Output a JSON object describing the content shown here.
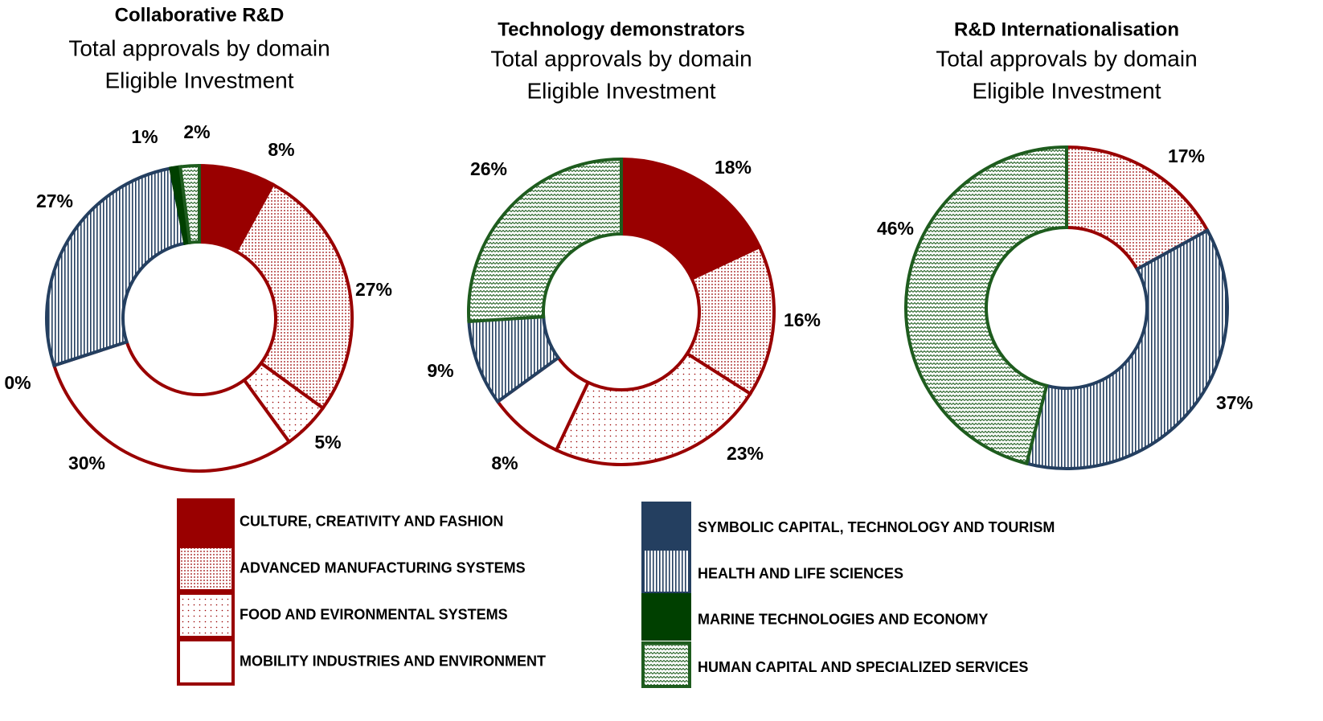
{
  "chart_data": [
    {
      "type": "pie",
      "title": "Collaborative R&D",
      "subtitle": [
        "Total approvals by domain",
        "Eligible Investment"
      ],
      "categories": [
        "CULTURE, CREATIVITY AND FASHION",
        "ADVANCED MANUFACTURING  SYSTEMS",
        "FOOD AND EVIRONMENTAL SYSTEMS",
        "MOBILITY  INDUSTRIES AND ENVIRONMENT",
        "SYMBOLIC CAPITAL, TECHNOLOGY AND TOURISM",
        "HEALTH AND LIFE SCIENCES",
        "MARINE TECHNOLOGIES AND ECONOMY",
        "HUMAN CAPITAL AND SPECIALIZED SERVICES"
      ],
      "values": [
        8,
        27,
        5,
        30,
        0,
        27,
        1,
        2
      ],
      "value_labels": [
        "8%",
        "27%",
        "5%",
        "30%",
        "0%",
        "27%",
        "1%",
        "2%"
      ],
      "colors": [
        "#990000",
        "#990000",
        "#990000",
        "#990000",
        "#243f60",
        "#243f60",
        "#004000",
        "#1e5c1e"
      ],
      "patterns": [
        "solid",
        "dense-dots",
        "sparse-dots",
        "none",
        "solid",
        "vertical-lines",
        "solid",
        "waves"
      ]
    },
    {
      "type": "pie",
      "title": "Technology demonstrators",
      "subtitle": [
        "Total approvals by domain",
        "Eligible Investment"
      ],
      "categories": [
        "CULTURE, CREATIVITY AND FASHION",
        "ADVANCED MANUFACTURING  SYSTEMS",
        "FOOD AND EVIRONMENTAL SYSTEMS",
        "MOBILITY  INDUSTRIES AND ENVIRONMENT",
        "HEALTH AND LIFE SCIENCES",
        "HUMAN CAPITAL AND SPECIALIZED SERVICES"
      ],
      "values": [
        18,
        16,
        23,
        8,
        9,
        26
      ],
      "value_labels": [
        "18%",
        "16%",
        "23%",
        "8%",
        "9%",
        "26%"
      ],
      "colors": [
        "#990000",
        "#990000",
        "#990000",
        "#990000",
        "#243f60",
        "#1e5c1e"
      ],
      "patterns": [
        "solid",
        "dense-dots",
        "sparse-dots",
        "none",
        "vertical-lines",
        "waves"
      ]
    },
    {
      "type": "pie",
      "title": "R&D Internationalisation",
      "subtitle": [
        "Total approvals by domain",
        "Eligible Investment"
      ],
      "categories": [
        "ADVANCED MANUFACTURING  SYSTEMS",
        "HEALTH AND LIFE SCIENCES",
        "HUMAN CAPITAL AND SPECIALIZED SERVICES"
      ],
      "values": [
        17,
        37,
        46
      ],
      "value_labels": [
        "17%",
        "37%",
        "46%"
      ],
      "colors": [
        "#990000",
        "#243f60",
        "#1e5c1e"
      ],
      "patterns": [
        "dense-dots",
        "vertical-lines",
        "waves"
      ]
    }
  ]
}
